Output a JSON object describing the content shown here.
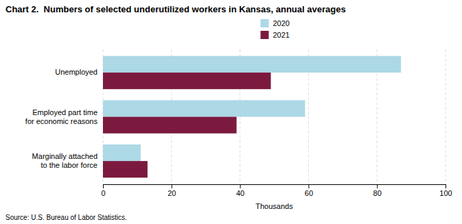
{
  "chart_data": {
    "type": "bar",
    "orientation": "horizontal",
    "title": "Chart 2.  Numbers of selected underutilized workers in Kansas, annual averages",
    "categories": [
      "Unemployed",
      "Employed part time\nfor economic reasons",
      "Marginally attached\nto the labor force"
    ],
    "series": [
      {
        "name": "2020",
        "color": "#add8e6",
        "values": [
          87,
          59,
          11
        ]
      },
      {
        "name": "2021",
        "color": "#7b1a3e",
        "values": [
          49,
          39,
          13
        ]
      }
    ],
    "xlim": [
      0,
      100
    ],
    "xticks": [
      0,
      20,
      40,
      60,
      80,
      100
    ],
    "xlabel": "Thousands",
    "source": "Source: U.S. Bureau of Labor Statistics.",
    "grid": true,
    "legend": "top"
  }
}
